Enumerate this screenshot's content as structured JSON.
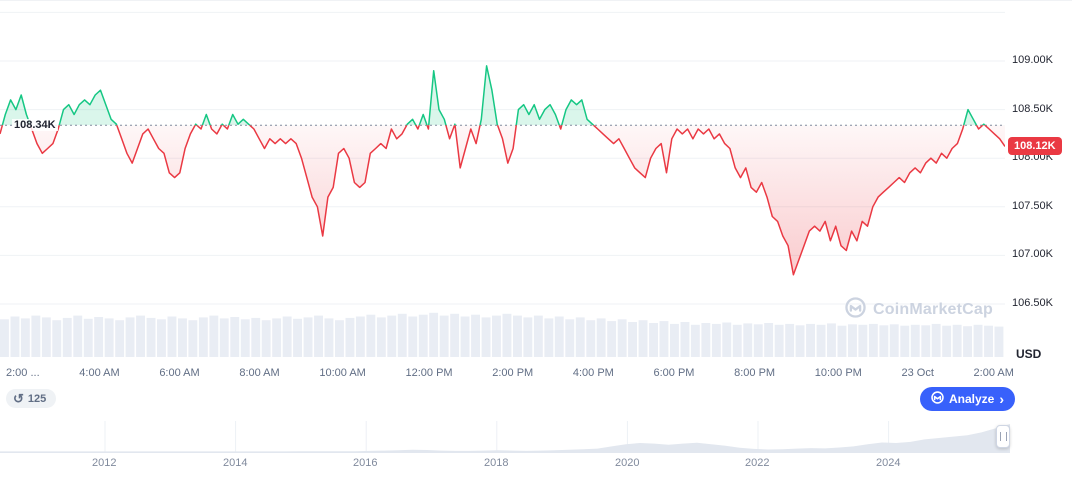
{
  "chart_data": {
    "type": "line",
    "title": "",
    "xlabel": "",
    "ylabel": "",
    "y_unit": "USD",
    "ylim": [
      106.5,
      109.0
    ],
    "baseline_value": 108.34,
    "baseline_label": "108.34K",
    "last_price_value": 108.12,
    "last_price_label": "108.12K",
    "y_ticks": [
      {
        "label": "109.00K",
        "value": 109.0
      },
      {
        "label": "108.50K",
        "value": 108.5
      },
      {
        "label": "108.00K",
        "value": 108.0
      },
      {
        "label": "107.50K",
        "value": 107.5
      },
      {
        "label": "107.00K",
        "value": 107.0
      },
      {
        "label": "106.50K",
        "value": 106.5
      }
    ],
    "x_labels": [
      "2:00 ...",
      "4:00 AM",
      "6:00 AM",
      "8:00 AM",
      "10:00 AM",
      "12:00 PM",
      "2:00 PM",
      "4:00 PM",
      "6:00 PM",
      "8:00 PM",
      "10:00 PM",
      "23 Oct",
      "2:00 AM"
    ],
    "series": [
      {
        "name": "price",
        "values": [
          108.25,
          108.45,
          108.6,
          108.5,
          108.65,
          108.45,
          108.3,
          108.15,
          108.05,
          108.1,
          108.15,
          108.3,
          108.5,
          108.55,
          108.45,
          108.55,
          108.6,
          108.55,
          108.65,
          108.7,
          108.55,
          108.4,
          108.35,
          108.2,
          108.05,
          107.95,
          108.1,
          108.25,
          108.3,
          108.2,
          108.1,
          108.05,
          107.85,
          107.8,
          107.85,
          108.1,
          108.25,
          108.35,
          108.3,
          108.45,
          108.3,
          108.25,
          108.35,
          108.3,
          108.45,
          108.35,
          108.4,
          108.35,
          108.3,
          108.2,
          108.1,
          108.2,
          108.15,
          108.2,
          108.15,
          108.2,
          108.15,
          108.0,
          107.8,
          107.6,
          107.5,
          107.2,
          107.6,
          107.7,
          108.05,
          108.1,
          108.0,
          107.75,
          107.7,
          107.75,
          108.05,
          108.1,
          108.15,
          108.1,
          108.3,
          108.2,
          108.25,
          108.35,
          108.4,
          108.3,
          108.45,
          108.3,
          108.9,
          108.5,
          108.4,
          108.2,
          108.35,
          107.9,
          108.1,
          108.3,
          108.15,
          108.4,
          108.95,
          108.7,
          108.35,
          108.2,
          107.95,
          108.1,
          108.5,
          108.55,
          108.45,
          108.55,
          108.4,
          108.5,
          108.55,
          108.45,
          108.3,
          108.5,
          108.6,
          108.55,
          108.6,
          108.4,
          108.35,
          108.3,
          108.25,
          108.2,
          108.15,
          108.2,
          108.1,
          108.0,
          107.9,
          107.85,
          107.8,
          108.0,
          108.1,
          108.15,
          107.85,
          108.2,
          108.3,
          108.25,
          108.3,
          108.2,
          108.3,
          108.25,
          108.3,
          108.2,
          108.25,
          108.15,
          108.1,
          107.9,
          107.8,
          107.9,
          107.7,
          107.65,
          107.75,
          107.6,
          107.4,
          107.35,
          107.2,
          107.1,
          106.8,
          106.95,
          107.1,
          107.25,
          107.3,
          107.25,
          107.35,
          107.15,
          107.3,
          107.1,
          107.05,
          107.25,
          107.15,
          107.35,
          107.3,
          107.5,
          107.6,
          107.65,
          107.7,
          107.75,
          107.8,
          107.75,
          107.85,
          107.9,
          107.85,
          107.95,
          108.0,
          107.95,
          108.05,
          108.0,
          108.1,
          108.15,
          108.3,
          108.5,
          108.4,
          108.3,
          108.35,
          108.3,
          108.25,
          108.2,
          108.12
        ]
      }
    ],
    "volumes": [
      0.82,
      0.88,
      0.84,
      0.9,
      0.86,
      0.8,
      0.85,
      0.9,
      0.83,
      0.87,
      0.84,
      0.8,
      0.86,
      0.9,
      0.85,
      0.82,
      0.88,
      0.84,
      0.8,
      0.86,
      0.9,
      0.84,
      0.87,
      0.82,
      0.85,
      0.8,
      0.84,
      0.88,
      0.83,
      0.86,
      0.9,
      0.84,
      0.8,
      0.85,
      0.88,
      0.92,
      0.86,
      0.9,
      0.94,
      0.88,
      0.92,
      0.96,
      0.9,
      0.94,
      0.88,
      0.92,
      0.86,
      0.9,
      0.94,
      0.9,
      0.86,
      0.9,
      0.84,
      0.88,
      0.82,
      0.86,
      0.8,
      0.84,
      0.78,
      0.82,
      0.76,
      0.8,
      0.74,
      0.78,
      0.72,
      0.76,
      0.7,
      0.74,
      0.72,
      0.75,
      0.7,
      0.73,
      0.71,
      0.74,
      0.7,
      0.72,
      0.69,
      0.72,
      0.7,
      0.73,
      0.68,
      0.71,
      0.7,
      0.72,
      0.69,
      0.71,
      0.68,
      0.7,
      0.69,
      0.72,
      0.68,
      0.7,
      0.67,
      0.7,
      0.68,
      0.66
    ],
    "colors": {
      "up": "#16c784",
      "down": "#ea3943",
      "grid": "#eff2f5",
      "volume": "#e9edf4",
      "baseline": "#808a9d",
      "badge_bg": "#ea3943",
      "badge_text": "#ffffff"
    },
    "legend": "none"
  },
  "navigator": {
    "years": [
      "2012",
      "2014",
      "2016",
      "2018",
      "2020",
      "2022",
      "2024"
    ],
    "series": [
      0.02,
      0.02,
      0.02,
      0.02,
      0.02,
      0.02,
      0.02,
      0.02,
      0.02,
      0.02,
      0.02,
      0.02,
      0.02,
      0.02,
      0.02,
      0.02,
      0.02,
      0.02,
      0.02,
      0.02,
      0.02,
      0.03,
      0.03,
      0.03,
      0.03,
      0.03,
      0.04,
      0.05,
      0.06,
      0.08,
      0.07,
      0.05,
      0.04,
      0.04,
      0.05,
      0.06,
      0.05,
      0.04,
      0.05,
      0.06,
      0.08,
      0.1,
      0.12,
      0.2,
      0.28,
      0.32,
      0.3,
      0.26,
      0.3,
      0.33,
      0.28,
      0.22,
      0.15,
      0.11,
      0.09,
      0.1,
      0.12,
      0.14,
      0.13,
      0.16,
      0.2,
      0.28,
      0.34,
      0.32,
      0.36,
      0.45,
      0.5,
      0.55,
      0.6,
      0.7,
      0.85,
      1.0
    ]
  },
  "controls": {
    "history_count": "125",
    "analyze_label": "Analyze",
    "analyze_chevron": "›",
    "accent_color": "#3861fb"
  },
  "watermark": {
    "text": "CoinMarketCap"
  },
  "axis_footer": {
    "unit": "USD"
  }
}
